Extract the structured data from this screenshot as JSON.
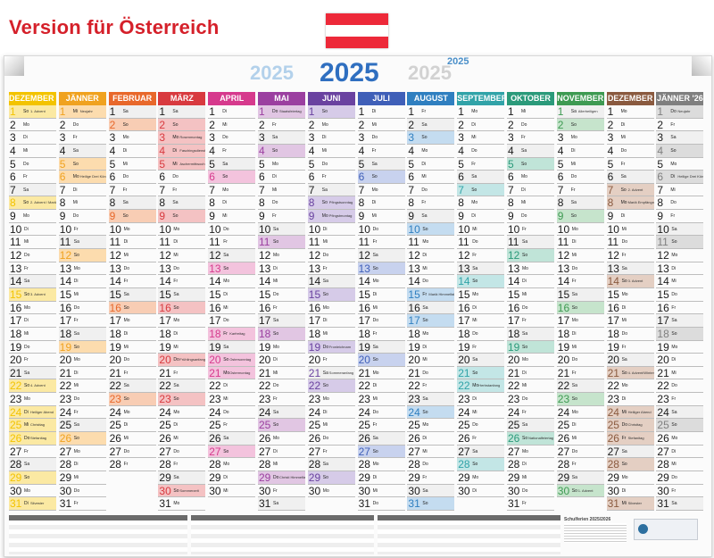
{
  "headline": "Version für Österreich",
  "flag_colors": [
    "#ed2939",
    "#ffffff",
    "#ed2939"
  ],
  "year": "2025",
  "months": [
    {
      "name": "DEZEMBER '24",
      "color": "#f3c300",
      "tint": "#fbe9a3",
      "days": 31,
      "startDow": 0,
      "events": {
        "1": "1. Advent",
        "8": "2. Advent / Mariä Empfängnis",
        "15": "3. Advent",
        "22": "4. Advent",
        "24": "Heiliger Abend",
        "25": "Christtag",
        "26": "Stefanitag",
        "31": "Silvester"
      }
    },
    {
      "name": "JÄNNER",
      "color": "#f0a21f",
      "tint": "#fcdcae",
      "days": 31,
      "startDow": 3,
      "events": {
        "1": "Neujahr",
        "6": "Heilige Drei Könige"
      }
    },
    {
      "name": "FEBRUAR",
      "color": "#e8682b",
      "tint": "#f8cdb4",
      "days": 28,
      "startDow": 6,
      "events": {}
    },
    {
      "name": "MÄRZ",
      "color": "#d83a3f",
      "tint": "#f4c2c3",
      "days": 31,
      "startDow": 6,
      "events": {
        "3": "Rosenmontag",
        "4": "Faschingsdienstag",
        "5": "Aschermittwoch",
        "20": "Frühlingsanfang",
        "30": "Sommerzeit"
      }
    },
    {
      "name": "APRIL",
      "color": "#d63a8d",
      "tint": "#f3c3dd",
      "days": 30,
      "startDow": 2,
      "events": {
        "18": "Karfreitag",
        "20": "Ostersonntag",
        "21": "Ostermontag"
      }
    },
    {
      "name": "MAI",
      "color": "#9b3fa0",
      "tint": "#e1c6e3",
      "days": 31,
      "startDow": 4,
      "events": {
        "1": "Staatsfeiertag",
        "29": "Christi Himmelfahrt"
      }
    },
    {
      "name": "JUNI",
      "color": "#6a42a0",
      "tint": "#d6cbe8",
      "days": 30,
      "startDow": 0,
      "events": {
        "8": "Pfingstsonntag",
        "9": "Pfingstmontag",
        "19": "Fronleichnam",
        "21": "Sommeranfang"
      }
    },
    {
      "name": "JULI",
      "color": "#3f5fb8",
      "tint": "#c8d2ee",
      "days": 31,
      "startDow": 2,
      "events": {}
    },
    {
      "name": "AUGUST",
      "color": "#2f7fc0",
      "tint": "#c4dcf0",
      "days": 31,
      "startDow": 5,
      "events": {
        "15": "Mariä Himmelfahrt"
      }
    },
    {
      "name": "SEPTEMBER",
      "color": "#31a3a8",
      "tint": "#c3e6e6",
      "days": 30,
      "startDow": 1,
      "events": {
        "22": "Herbstanfang"
      }
    },
    {
      "name": "OKTOBER",
      "color": "#2b9a7a",
      "tint": "#c0e4d8",
      "days": 31,
      "startDow": 3,
      "events": {
        "26": "Nationalfeiertag"
      }
    },
    {
      "name": "NOVEMBER",
      "color": "#3e9a52",
      "tint": "#c6e4cc",
      "days": 30,
      "startDow": 6,
      "events": {
        "1": "Allerheiligen",
        "30": "1. Advent"
      }
    },
    {
      "name": "DEZEMBER",
      "color": "#8a5a3f",
      "tint": "#e4cfc3",
      "days": 31,
      "startDow": 1,
      "events": {
        "7": "2. Advent",
        "8": "Mariä Empfängnis",
        "14": "3. Advent",
        "21": "4. Advent/Winteranfang",
        "24": "Heiliger Abend",
        "25": "Christtag",
        "26": "Stefanitag",
        "31": "Silvester"
      }
    },
    {
      "name": "JÄNNER '26",
      "color": "#7f7f7f",
      "tint": "#dcdcdc",
      "days": 31,
      "startDow": 4,
      "events": {
        "1": "Neujahr",
        "6": "Heilige Drei Könige"
      }
    }
  ],
  "weekday_abbr": [
    "So",
    "Mo",
    "Di",
    "Mi",
    "Do",
    "Fr",
    "Sa"
  ],
  "legend_title": "Schulferien 2025/2026"
}
